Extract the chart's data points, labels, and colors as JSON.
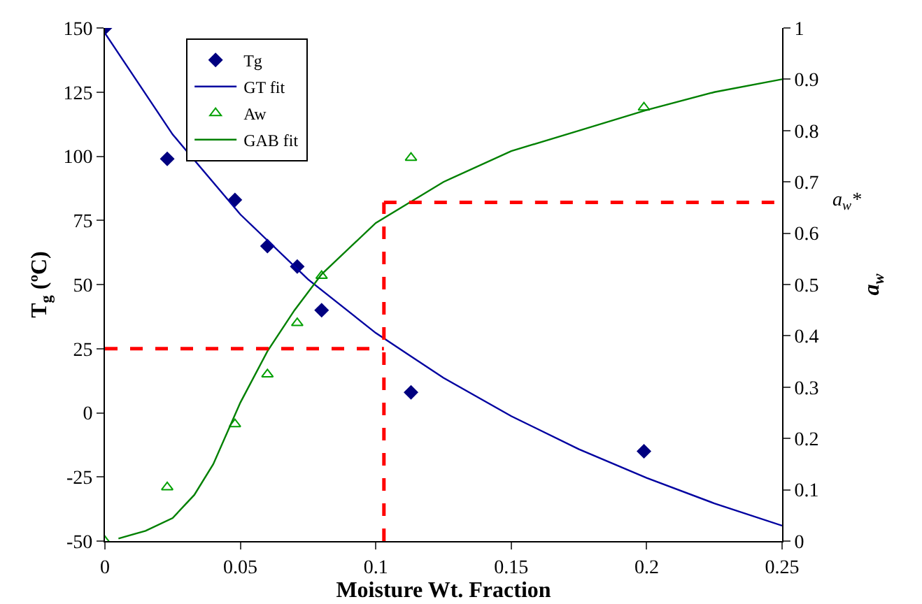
{
  "chart_data": {
    "type": "scatter",
    "xlabel": "Moisture Wt. Fraction",
    "ylabel": "T$_{g}$ (ºC)",
    "y2label": "a$_{w}$",
    "xlim": [
      0,
      0.25
    ],
    "xticks": [
      0,
      0.05,
      0.1,
      0.15,
      0.2,
      0.25
    ],
    "ylim": [
      -50,
      150
    ],
    "yticks": [
      -50,
      -25,
      0,
      25,
      50,
      75,
      100,
      125,
      150
    ],
    "y2lim": [
      0,
      1
    ],
    "y2ticks": [
      0,
      0.1,
      0.2,
      0.3,
      0.4,
      0.5,
      0.6,
      0.7,
      0.8,
      0.9,
      1
    ],
    "grid": false,
    "legend": "top left",
    "series": [
      {
        "name": "Tg",
        "type": "scatter",
        "marker": "diamond",
        "color": "#000080",
        "x": [
          0,
          0.023,
          0.048,
          0.06,
          0.071,
          0.08,
          0.113,
          0.199
        ],
        "values": [
          150,
          99,
          83,
          65,
          57,
          40,
          8,
          -15
        ]
      },
      {
        "name": "GT fit",
        "type": "line",
        "marker": "none",
        "color": "#0000a0",
        "x": [
          0,
          0.025,
          0.05,
          0.075,
          0.1,
          0.125,
          0.15,
          0.175,
          0.2,
          0.225,
          0.25
        ],
        "values": [
          148,
          108.5,
          77.3,
          52,
          31.1,
          13.6,
          -1.3,
          -14.2,
          -25.4,
          -35.3,
          -44
        ]
      },
      {
        "name": "Aw",
        "type": "scatter",
        "marker": "triangle",
        "axis": "y2",
        "color": "#00a000",
        "x": [
          0,
          0.023,
          0.048,
          0.06,
          0.071,
          0.08,
          0.113,
          0.199
        ],
        "values": [
          0,
          0.105,
          0.228,
          0.325,
          0.425,
          0.517,
          0.747,
          0.845
        ]
      },
      {
        "name": "GAB fit",
        "type": "line",
        "marker": "none",
        "axis": "y2",
        "color": "#008000",
        "x": [
          0.005,
          0.015,
          0.025,
          0.033,
          0.04,
          0.05,
          0.06,
          0.07,
          0.08,
          0.1,
          0.125,
          0.15,
          0.175,
          0.2,
          0.225,
          0.25
        ],
        "values": [
          0.005,
          0.02,
          0.045,
          0.09,
          0.15,
          0.27,
          0.37,
          0.45,
          0.52,
          0.62,
          0.7,
          0.76,
          0.8,
          0.84,
          0.875,
          0.9
        ]
      }
    ],
    "ref_lines": [
      {
        "axis": "y",
        "value": 25,
        "color": "#ff0000",
        "line_style": "dashed"
      },
      {
        "axis": "x",
        "value": 0.103,
        "color": "#ff0000",
        "line_style": "dashed"
      },
      {
        "axis": "y2",
        "value": 0.66,
        "label": "a$_{w}$*",
        "color": "#ff0000",
        "line_style": "dashed"
      }
    ]
  }
}
